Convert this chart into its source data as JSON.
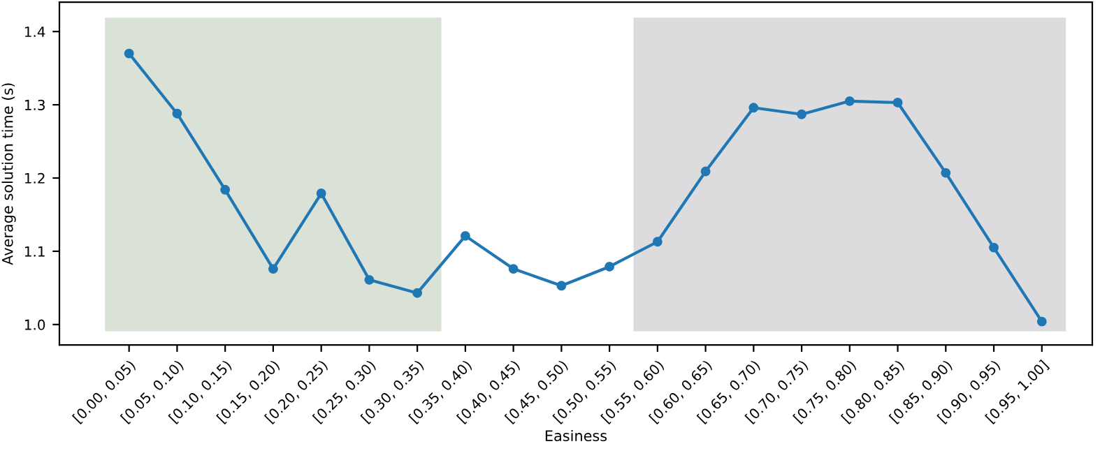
{
  "chart_data": {
    "type": "line",
    "xlabel": "Easiness",
    "ylabel": "Average solution time (s)",
    "categories": [
      "[0.00, 0.05)",
      "[0.05, 0.10)",
      "[0.10, 0.15)",
      "[0.15, 0.20)",
      "[0.20, 0.25)",
      "[0.25, 0.30)",
      "[0.30, 0.35)",
      "[0.35, 0.40)",
      "[0.40, 0.45)",
      "[0.45, 0.50)",
      "[0.50, 0.55)",
      "[0.55, 0.60)",
      "[0.60, 0.65)",
      "[0.65, 0.70)",
      "[0.70, 0.75)",
      "[0.75, 0.80)",
      "[0.80, 0.85)",
      "[0.85, 0.90)",
      "[0.90, 0.95)",
      "[0.95, 1.00]"
    ],
    "series": [
      {
        "color": "#1f77b4",
        "values": [
          1.37,
          1.288,
          1.184,
          1.076,
          1.179,
          1.061,
          1.043,
          1.121,
          1.076,
          1.053,
          1.079,
          1.113,
          1.209,
          1.296,
          1.287,
          1.305,
          1.303,
          1.207,
          1.105,
          1.004
        ]
      }
    ],
    "ylim": [
      0.972,
      1.44
    ],
    "yticks": [
      {
        "value": 1.0,
        "label": "1.0"
      },
      1.1,
      1.2,
      1.3,
      1.4
    ],
    "marker": "circle",
    "line_style": "solid",
    "grid": false,
    "legend": false
  }
}
